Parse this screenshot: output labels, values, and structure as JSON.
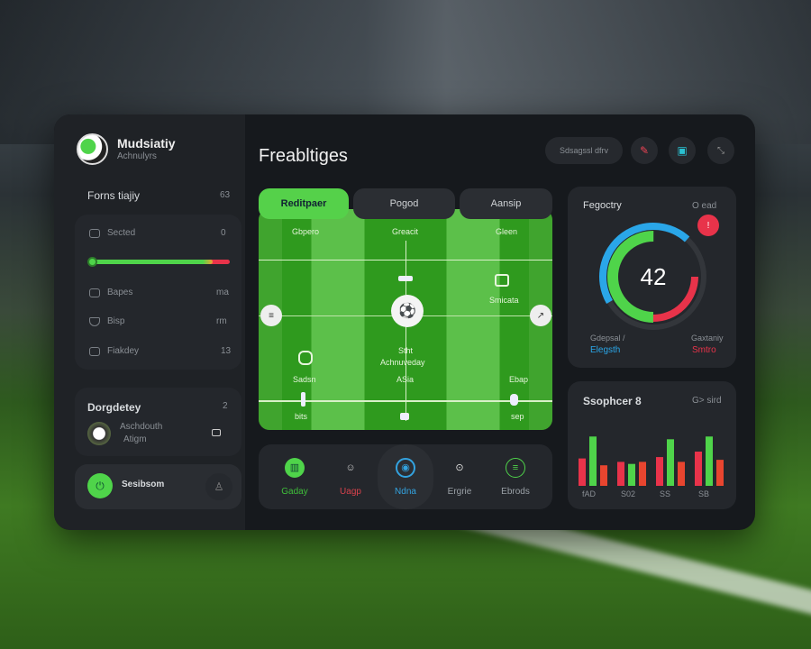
{
  "app": {
    "title": "Mudsiatiy",
    "subtitle": "Achnulyrs"
  },
  "sidebar": {
    "section_title": "Forns tiajiy",
    "section_count": "63",
    "rows": [
      {
        "icon": "cursor-icon",
        "label": "Sected",
        "value": "0"
      },
      {
        "icon": "image-icon",
        "label": "Bapes",
        "value": "ma"
      },
      {
        "icon": "shield-icon",
        "label": "Bisp",
        "value": "rm"
      },
      {
        "icon": "check-icon",
        "label": "Fiakdey",
        "value": "13"
      }
    ],
    "slider": {
      "value": 0.88,
      "colors": [
        "#4fd44a",
        "#f0a030",
        "#e8334a"
      ]
    },
    "card2": {
      "title": "Dorgdetey",
      "count": "2",
      "name": "Aschdouth",
      "sub": "Atigm"
    },
    "card3": {
      "label": "Sesibsom"
    }
  },
  "header": {
    "title": "Freabltiges",
    "search_label": "Sdsagssl dfrv"
  },
  "tabs": [
    {
      "label": "Reditpaer",
      "active": true
    },
    {
      "label": "Pogod"
    },
    {
      "label": "Aansip"
    }
  ],
  "pitch": {
    "top_labels": [
      "Gbpero",
      "Greacit",
      "Gleen"
    ],
    "right_label": "Smicata",
    "center_title": "Stht",
    "center_sub": "Achnuveday",
    "left_label": "Sadsn",
    "mid_label": "ASia",
    "right_low_label": "Ebap",
    "bottom_left": "bits",
    "bottom_right": "sep"
  },
  "bottom_nav": [
    {
      "label": "Gaday",
      "color": "#3fbf3a",
      "active": false
    },
    {
      "label": "Uagp",
      "color": "#d8424c"
    },
    {
      "label": "Ndna",
      "color": "#33a3e0",
      "active": true
    },
    {
      "label": "Ergrie",
      "color": "#9aa0a6"
    },
    {
      "label": "Ebrods",
      "color": "#9aa0a6"
    }
  ],
  "gauge": {
    "title": "Fegoctry",
    "status": "O ead",
    "value": "42",
    "left_label": "Gdepsal /",
    "left_value": "Elegsth",
    "right_label": "Gaxtaniy",
    "right_value": "Smtro",
    "arcs": {
      "blue": 0.45,
      "green": 0.5,
      "red": 0.25
    },
    "colors": {
      "blue": "#2aa6e8",
      "green": "#4fd44a",
      "red": "#e8334a",
      "track": "#33363b"
    }
  },
  "chart_data": {
    "type": "bar",
    "title": "Ssophcer 8",
    "legend": "G> sird",
    "categories": [
      "fAD",
      "S02",
      "SS",
      "SB"
    ],
    "series": [
      {
        "values": [
          0.4,
          0.35,
          0.42,
          0.5
        ],
        "color": "#e8334a"
      },
      {
        "values": [
          0.72,
          0.32,
          0.68,
          0.72
        ],
        "color": "#4fd44a"
      },
      {
        "values": [
          0.3,
          0.35,
          0.35,
          0.38
        ],
        "color": "#e8452f"
      }
    ]
  }
}
